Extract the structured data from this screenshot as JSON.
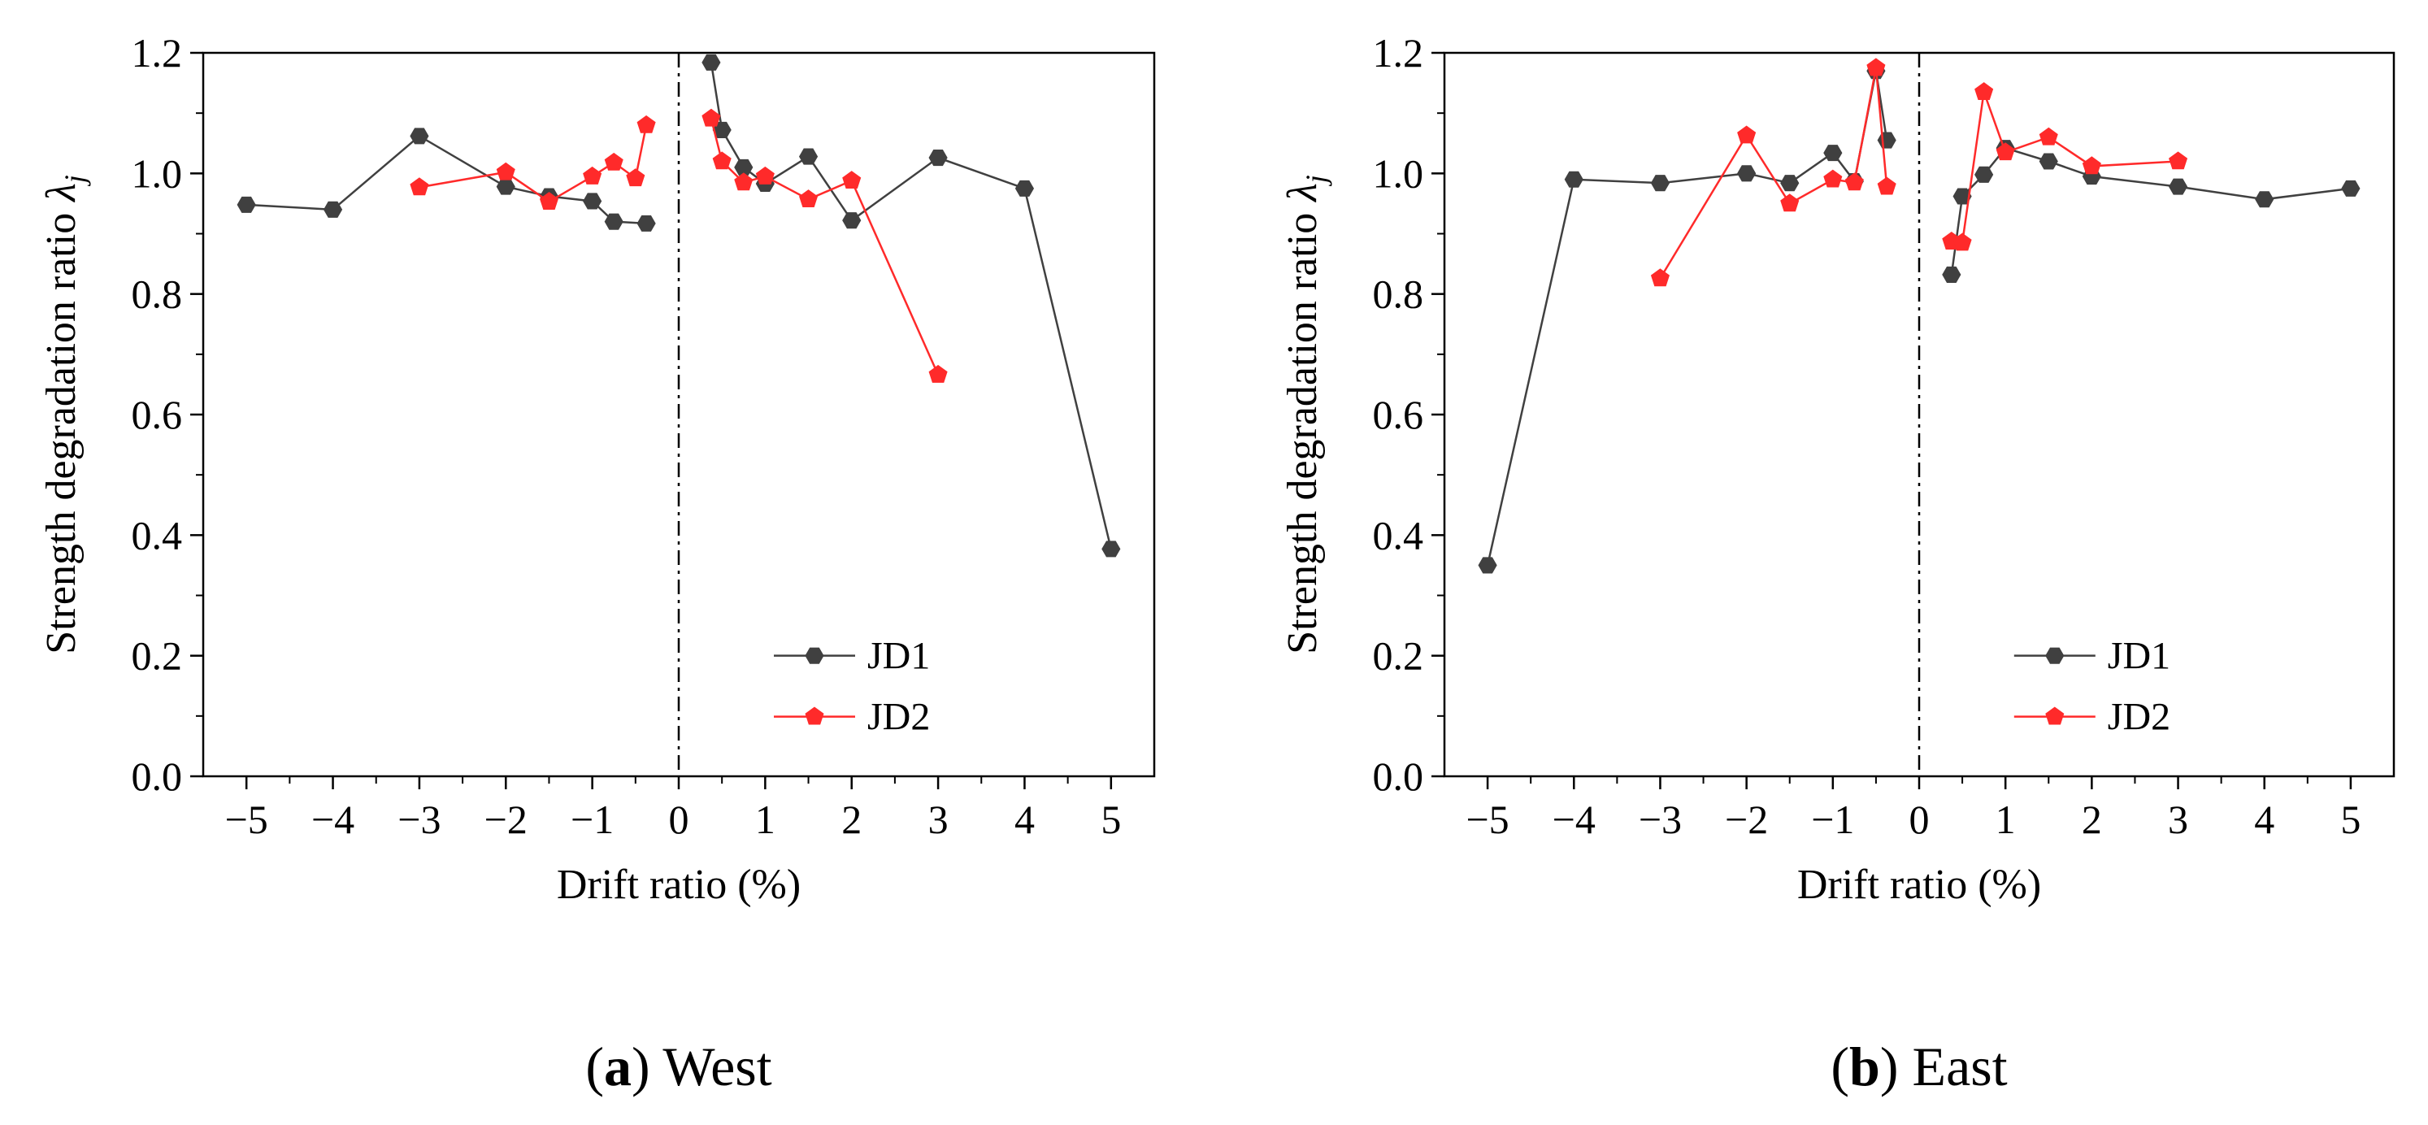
{
  "chart_data": [
    {
      "type": "line",
      "panel": "a",
      "caption_letter": "a",
      "caption_text": "West",
      "xlabel": "Drift ratio (%)",
      "ylabel": "Strength degradation ratio",
      "ylabel_symbol": "λ",
      "ylabel_subscript": "j",
      "xlim": [
        -5.5,
        5.5
      ],
      "ylim": [
        0.0,
        1.2
      ],
      "xticks": [
        -5,
        -4,
        -3,
        -2,
        -1,
        0,
        1,
        2,
        3,
        4,
        5
      ],
      "xtick_labels": [
        "−5",
        "−4",
        "−3",
        "−2",
        "−1",
        "0",
        "1",
        "2",
        "3",
        "4",
        "5"
      ],
      "yticks": [
        0.0,
        0.2,
        0.4,
        0.6,
        0.8,
        1.0,
        1.2
      ],
      "ytick_labels": [
        "0.0",
        "0.2",
        "0.4",
        "0.6",
        "0.8",
        "1.0",
        "1.2"
      ],
      "zero_line": true,
      "legend_position": "lower-right",
      "series": [
        {
          "name": "JD1",
          "color": "#404040",
          "marker": "hexagon",
          "segments": [
            {
              "x": [
                -5,
                -4,
                -3,
                -2,
                -1.5,
                -1,
                -0.75,
                -0.375
              ],
              "y": [
                0.948,
                0.94,
                1.062,
                0.978,
                0.962,
                0.954,
                0.92,
                0.917
              ]
            },
            {
              "x": [
                0.375,
                0.5,
                0.75,
                1,
                1.5,
                2,
                3,
                4,
                5
              ],
              "y": [
                1.184,
                1.072,
                1.01,
                0.983,
                1.028,
                0.922,
                1.026,
                0.975,
                0.377
              ]
            }
          ]
        },
        {
          "name": "JD2",
          "color": "#ff2a2a",
          "marker": "pentagon",
          "segments": [
            {
              "x": [
                -3,
                -2,
                -1.5,
                -1,
                -0.75,
                -0.5,
                -0.375
              ],
              "y": [
                0.977,
                1.002,
                0.953,
                0.995,
                1.018,
                0.992,
                1.08
              ]
            },
            {
              "x": [
                0.375,
                0.5,
                0.75,
                1,
                1.5,
                2,
                3
              ],
              "y": [
                1.091,
                1.02,
                0.985,
                0.995,
                0.957,
                0.988,
                0.666
              ]
            }
          ]
        }
      ]
    },
    {
      "type": "line",
      "panel": "b",
      "caption_letter": "b",
      "caption_text": "East",
      "xlabel": "Drift ratio (%)",
      "ylabel": "Strength degradation ratio",
      "ylabel_symbol": "λ",
      "ylabel_subscript": "j",
      "xlim": [
        -5.5,
        5.5
      ],
      "ylim": [
        0.0,
        1.2
      ],
      "xticks": [
        -5,
        -4,
        -3,
        -2,
        -1,
        0,
        1,
        2,
        3,
        4,
        5
      ],
      "xtick_labels": [
        "−5",
        "−4",
        "−3",
        "−2",
        "−1",
        "0",
        "1",
        "2",
        "3",
        "4",
        "5"
      ],
      "yticks": [
        0.0,
        0.2,
        0.4,
        0.6,
        0.8,
        1.0,
        1.2
      ],
      "ytick_labels": [
        "0.0",
        "0.2",
        "0.4",
        "0.6",
        "0.8",
        "1.0",
        "1.2"
      ],
      "zero_line": true,
      "legend_position": "lower-right",
      "series": [
        {
          "name": "JD1",
          "color": "#404040",
          "marker": "hexagon",
          "segments": [
            {
              "x": [
                -5,
                -4,
                -3,
                -2,
                -1.5,
                -1,
                -0.75,
                -0.5,
                -0.375
              ],
              "y": [
                0.35,
                0.99,
                0.984,
                1.0,
                0.984,
                1.034,
                0.987,
                1.17,
                1.055
              ]
            },
            {
              "x": [
                0.375,
                0.5,
                0.75,
                1,
                1.5,
                2,
                3,
                4,
                5
              ],
              "y": [
                0.832,
                0.962,
                0.998,
                1.042,
                1.02,
                0.995,
                0.978,
                0.957,
                0.975
              ]
            }
          ]
        },
        {
          "name": "JD2",
          "color": "#ff2a2a",
          "marker": "pentagon",
          "segments": [
            {
              "x": [
                -3,
                -2,
                -1.5,
                -1,
                -0.75,
                -0.5,
                -0.375
              ],
              "y": [
                0.826,
                1.063,
                0.95,
                0.99,
                0.985,
                1.175,
                0.978
              ]
            },
            {
              "x": [
                0.375,
                0.5,
                0.75,
                1,
                1.5,
                2,
                3
              ],
              "y": [
                0.887,
                0.885,
                1.135,
                1.035,
                1.06,
                1.012,
                1.02
              ]
            }
          ]
        }
      ]
    }
  ]
}
